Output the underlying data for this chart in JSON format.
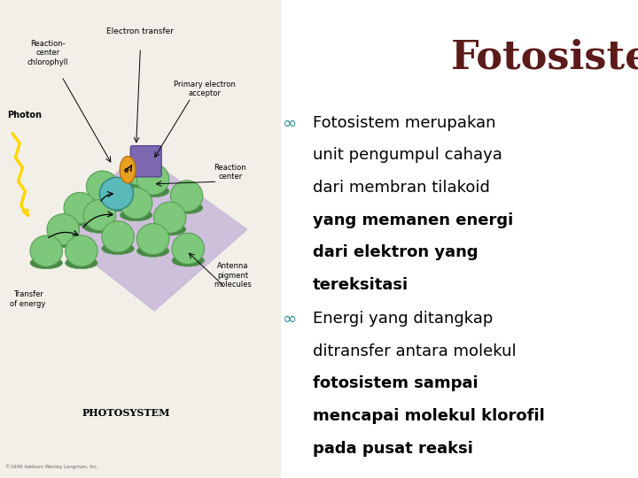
{
  "title": "Fotosistem",
  "title_color": "#5C1A1A",
  "title_fontsize": 32,
  "title_fontweight": "bold",
  "background_color": "#FFFFFF",
  "bullet_color": "#2E8B8B",
  "bullet1_line1": "Fotosistem merupakan",
  "bullet1_line2": "unit pengumpul cahaya",
  "bullet1_line3": "dari membran tilakoid ",
  "bullet1_bold1": "yang memanen energi",
  "bullet1_bold2": "dari elektron yang",
  "bullet1_bold3": "tereksitasi",
  "bullet2_line1": "Energi yang ditangkap",
  "bullet2_line2": "ditransfer antara molekul",
  "bullet2_bold1": "fotosistem sampai",
  "bullet2_bold2": "mencapai molekul klorofil",
  "bullet2_bold3": "pada pusat reaksi",
  "text_color": "#000000",
  "text_fontsize": 13,
  "platform_color": "#C8B8D8",
  "disk_color": "#7DC87A",
  "disk_edge": "#5A9E58",
  "disk_dark": "#4A8848",
  "photon_color": "#FFD700",
  "copyright": "©1999 Addison Wesley Longman, Inc.",
  "photosystem_label": "PHOTOSYSTEM"
}
